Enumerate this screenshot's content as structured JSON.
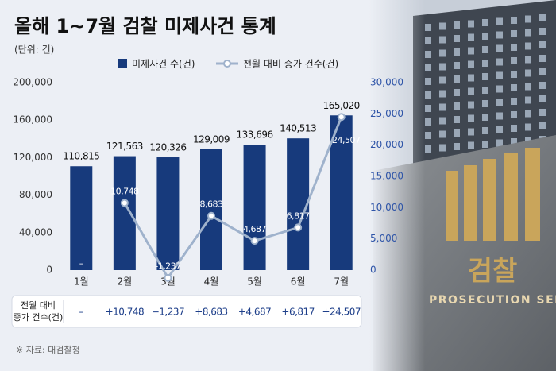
{
  "chart_data": {
    "type": "bar",
    "title": "올해 1~7월 검찰 미제사건 통계",
    "subtitle": "(단위: 건)",
    "categories": [
      "1월",
      "2월",
      "3월",
      "4월",
      "5월",
      "6월",
      "7월"
    ],
    "series": [
      {
        "name": "미제사건 수(건)",
        "type": "bar",
        "color": "#173a7c",
        "values": [
          110815,
          121563,
          120326,
          129009,
          133696,
          140513,
          165020
        ],
        "value_labels": [
          "110,815",
          "121,563",
          "120,326",
          "129,009",
          "133,696",
          "140,513",
          "165,020"
        ]
      },
      {
        "name": "전월 대비 증가 건수(건)",
        "type": "line",
        "axis": "y2",
        "color": "#9fb2cc",
        "values": [
          null,
          10748,
          -1237,
          8683,
          4687,
          6817,
          24507
        ],
        "value_labels": [
          "–",
          "10,748",
          "-1,237",
          "8,683",
          "4,687",
          "6,817",
          "24,507"
        ]
      }
    ],
    "ylim": [
      0,
      200000
    ],
    "yticks": [
      0,
      {
        "value": 40000,
        "label": "40,000"
      },
      {
        "value": 80000,
        "label": "80,000"
      },
      {
        "value": 120000,
        "label": "120,000"
      },
      {
        "value": 160000,
        "label": "160,000"
      },
      {
        "value": 200000,
        "label": "200,000"
      }
    ],
    "y2lim": [
      0,
      30000
    ],
    "y2ticks": [
      0,
      {
        "value": 5000,
        "label": "5,000"
      },
      {
        "value": 10000,
        "label": "10,000"
      },
      {
        "value": 15000,
        "label": "15,000"
      },
      {
        "value": 20000,
        "label": "20,000"
      },
      {
        "value": 25000,
        "label": "25,000"
      },
      {
        "value": 30000,
        "label": "30,000"
      }
    ],
    "table": {
      "header": [
        "전월 대비",
        "증가 건수(건)"
      ],
      "cells": [
        "–",
        "+10,748",
        "−1,237",
        "+8,683",
        "+4,687",
        "+6,817",
        "+24,507"
      ]
    },
    "source": "※ 자료:  대검찰청"
  },
  "photo": {
    "sign": "검찰",
    "sign_en": "PROSECUTION SERVIC"
  }
}
